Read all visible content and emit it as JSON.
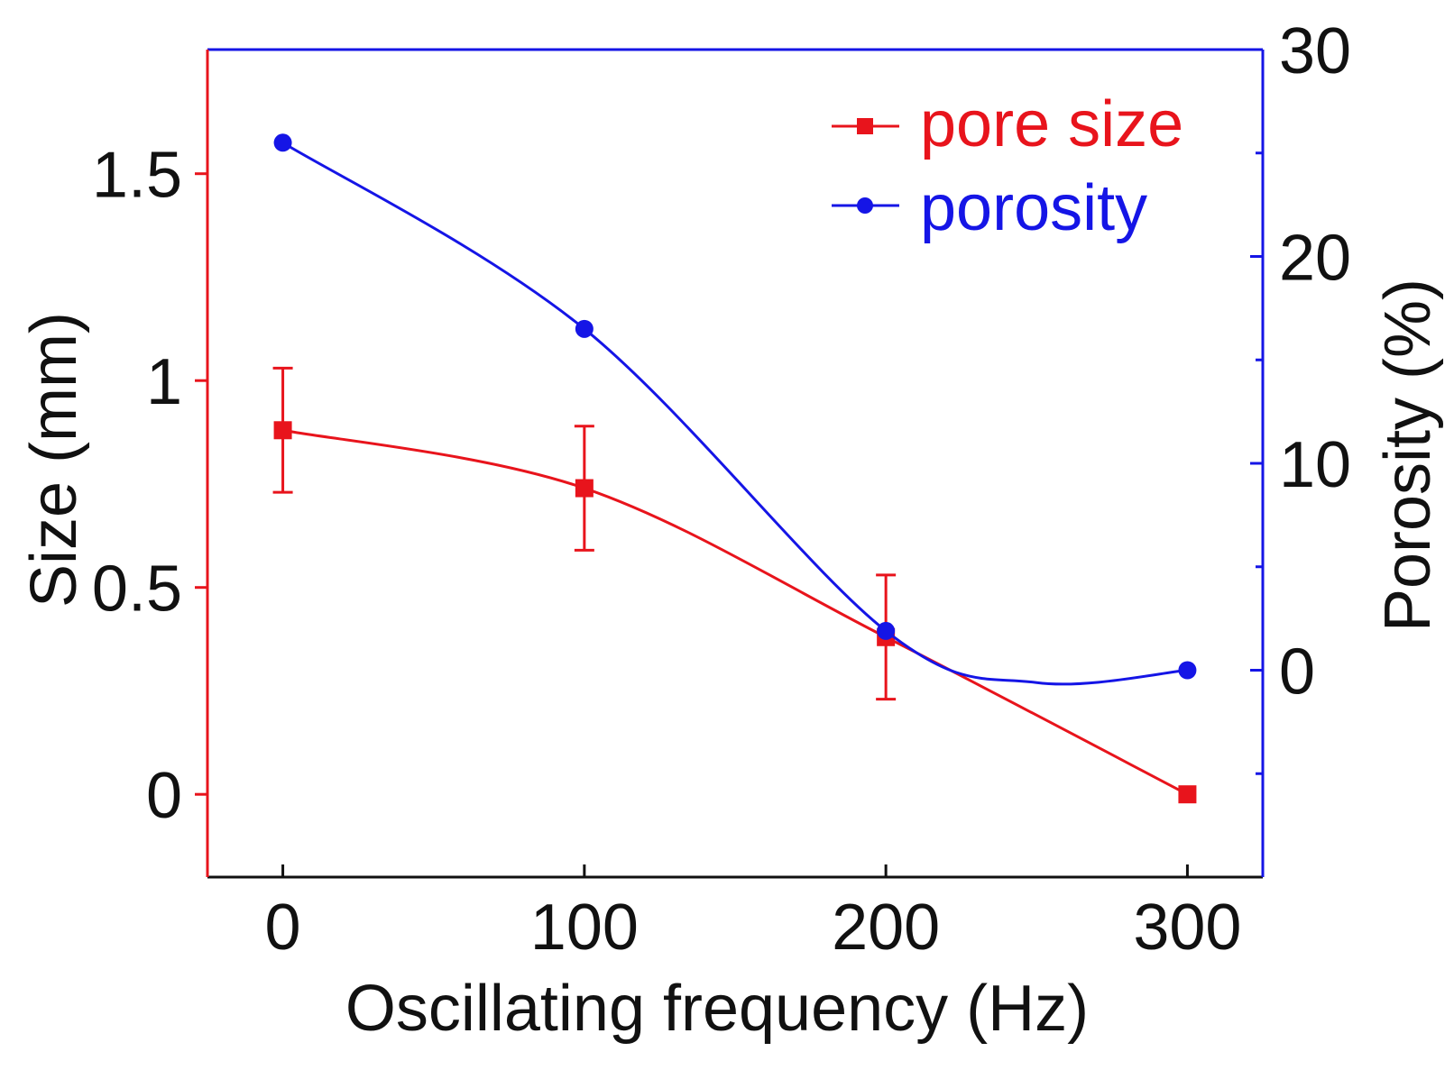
{
  "chart_data": {
    "type": "line",
    "xlabel": "Oscillating frequency (Hz)",
    "ylabel_left": "Size (mm)",
    "ylabel_right": "Porosity (%)",
    "x": [
      0,
      100,
      200,
      300
    ],
    "xlim": [
      -25,
      325
    ],
    "ylim_left": [
      -0.2,
      1.8
    ],
    "ylim_right": [
      -10,
      30
    ],
    "xticks": [
      0,
      100,
      200,
      300
    ],
    "xtick_labels": [
      "0",
      "100",
      "200",
      "300"
    ],
    "yticks_left": [
      0,
      0.5,
      1,
      1.5
    ],
    "ytick_labels_left": [
      "0",
      "0.5",
      "1",
      "1.5"
    ],
    "yticks_right": [
      0,
      10,
      20,
      30
    ],
    "ytick_labels_right": [
      "0",
      "10",
      "20",
      "30"
    ],
    "yminor_right": [
      -5,
      5,
      15,
      25
    ],
    "series": [
      {
        "name": "pore size",
        "axis": "left",
        "marker": "square",
        "color": "#e8141c",
        "values": [
          0.88,
          0.74,
          0.38,
          0.0
        ],
        "error": [
          0.15,
          0.15,
          0.15,
          0.0
        ]
      },
      {
        "name": "porosity",
        "axis": "right",
        "marker": "circle",
        "color": "#1515e6",
        "values": [
          25.5,
          16.5,
          1.9,
          0.0
        ],
        "curve_extra": [
          [
            250,
            -0.6
          ]
        ]
      }
    ],
    "legend_position": "top-right"
  },
  "colors": {
    "left_axis": "#e8141c",
    "right_axis": "#1515e6",
    "frame": "#111111"
  }
}
